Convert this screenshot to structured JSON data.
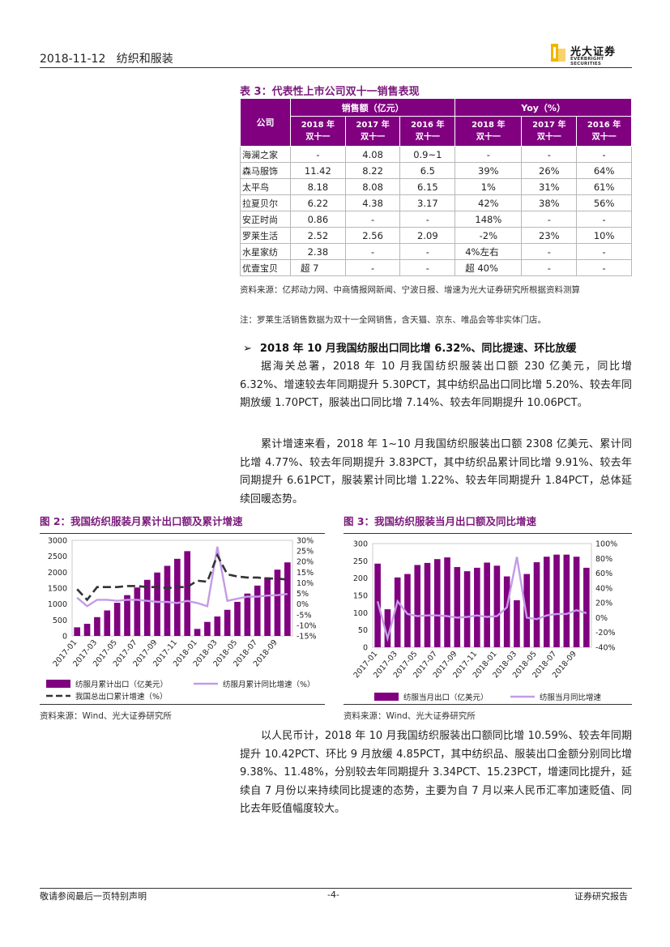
{
  "header": {
    "date": "2018-11-12",
    "section": "纺织和服装",
    "logo_cn": "光大证券",
    "logo_en": "EVERBRIGHT SECURITIES"
  },
  "table3": {
    "title": "表 3：代表性上市公司双十一销售表现",
    "col_company": "公司",
    "group_sales": "销售额（亿元）",
    "group_yoy": "Yoy（%）",
    "sub_headers": [
      [
        "2018 年",
        "双十一"
      ],
      [
        "2017 年",
        "双十一"
      ],
      [
        "2016 年",
        "双十一"
      ],
      [
        "2018 年",
        "双十一"
      ],
      [
        "2017 年",
        "双十一"
      ],
      [
        "2016 年",
        "双十一"
      ]
    ],
    "rows": [
      [
        "海澜之家",
        "-",
        "4.08",
        "0.9~1",
        "-",
        "-",
        "-"
      ],
      [
        "森马服饰",
        "11.42",
        "8.22",
        "6.5",
        "39%",
        "26%",
        "64%"
      ],
      [
        "太平鸟",
        "8.18",
        "8.08",
        "6.15",
        "1%",
        "31%",
        "61%"
      ],
      [
        "拉夏贝尔",
        "6.22",
        "4.38",
        "3.17",
        "42%",
        "38%",
        "56%"
      ],
      [
        "安正时尚",
        "0.86",
        "-",
        "-",
        "148%",
        "-",
        "-"
      ],
      [
        "罗莱生活",
        "2.52",
        "2.56",
        "2.09",
        "-2%",
        "23%",
        "10%"
      ],
      [
        "水星家纺",
        "2.38",
        "-",
        "-",
        "4%左右",
        "-",
        "-"
      ],
      [
        "优壹宝贝",
        "超 7",
        "-",
        "-",
        "超 40%",
        "-",
        "-"
      ]
    ],
    "source": "资料来源：亿邦动力网、中商情报网新闻、宁波日报、增速为光大证券研究所根据资料测算",
    "note": "注：罗莱生活销售数据为双十一全网销售，含天猫、京东、唯品会等非实体门店。"
  },
  "section_heading": "2018 年 10 月我国纺服出口同比增 6.32%、同比提速、环比放缓",
  "paragraphs": {
    "p1": "据海关总署，2018 年 10 月我国纺织服装出口额 230 亿美元，同比增 6.32%、增速较去年同期提升 5.30PCT，其中纺织品出口同比增 5.20%、较去年同期放缓 1.70PCT，服装出口同比增 7.14%、较去年同期提升 10.06PCT。",
    "p2": "累计增速来看，2018 年 1~10 月我国纺织服装出口额 2308 亿美元、累计同比增 4.77%、较去年同期提升 3.83PCT，其中纺织品累计同比增 9.91%、较去年同期提升 6.61PCT，服装累计同比增 1.22%、较去年同期提升 1.84PCT，总体延续回暖态势。",
    "p3": "以人民币计，2018 年 10 月我国纺织服装出口额同比增 10.59%、较去年同期提升 10.42PCT、环比 9 月放缓 4.85PCT，其中纺织品、服装出口金额分别同比增 9.38%、11.48%，分别较去年同期提升 3.34PCT、15.23PCT，增速同比提升，延续自 7 月份以来持续同比提速的态势，主要为自 7 月以来人民币汇率加速贬值、同比去年贬值幅度较大。"
  },
  "figures": {
    "fig2_title": "图 2：我国纺织服装月累计出口额及累计增速",
    "fig3_title": "图 3：我国纺织服装当月出口额及同比增速",
    "fig2_source": "资料来源：Wind、光大证券研究所",
    "fig3_source": "资料来源：Wind、光大证券研究所"
  },
  "chart_data": [
    {
      "type": "bar",
      "x_ticks": [
        "2017-01",
        "2017-03",
        "2017-05",
        "2017-07",
        "2017-09",
        "2017-11",
        "2018-01",
        "2018-03",
        "2018-05",
        "2018-07",
        "2018-09"
      ],
      "categories": [
        "2017-01",
        "2017-02",
        "2017-03",
        "2017-04",
        "2017-05",
        "2017-06",
        "2017-07",
        "2017-08",
        "2017-09",
        "2017-10",
        "2017-11",
        "2017-12",
        "2018-01",
        "2018-02",
        "2018-03",
        "2018-04",
        "2018-05",
        "2018-06",
        "2018-07",
        "2018-08",
        "2018-09",
        "2018-10"
      ],
      "left_ylim": [
        0,
        3000
      ],
      "left_yticks": [
        "3000",
        "2500",
        "2000",
        "1500",
        "1000",
        "500",
        "0"
      ],
      "right_ylim": [
        -15,
        30
      ],
      "right_yticks": [
        "30%",
        "25%",
        "20%",
        "15%",
        "10%",
        "5%",
        "0%",
        "-5%",
        "-10%",
        "-15%"
      ],
      "series": [
        {
          "name": "纺服月累计出口（亿美元）",
          "kind": "bar",
          "axis": "left",
          "color": "#800080",
          "values": [
            270,
            380,
            590,
            800,
            1040,
            1280,
            1520,
            1760,
            1990,
            2200,
            2420,
            2660,
            220,
            440,
            610,
            820,
            1070,
            1330,
            1580,
            1840,
            2080,
            2308
          ]
        },
        {
          "name": "纺服月累计同比增速（%）",
          "kind": "line",
          "axis": "right",
          "color": "#c39be6",
          "values": [
            3.0,
            -1.0,
            2.0,
            2.0,
            1.5,
            2.0,
            2.0,
            1.5,
            1.0,
            1.0,
            0.5,
            1.5,
            0.5,
            -1.0,
            27.0,
            1.5,
            2.5,
            3.5,
            3.5,
            4.0,
            4.2,
            4.77
          ]
        },
        {
          "name": "我国总出口累计增速（%）",
          "kind": "line",
          "axis": "right",
          "color": "#333333",
          "dashed": true,
          "values": [
            7.0,
            2.0,
            8.0,
            8.0,
            8.0,
            8.5,
            8.5,
            8.0,
            8.0,
            7.5,
            8.0,
            8.0,
            11.0,
            10.5,
            23.0,
            14.0,
            13.0,
            12.5,
            12.5,
            12.0,
            12.0,
            11.5
          ]
        }
      ]
    },
    {
      "type": "bar",
      "x_ticks": [
        "2017-01",
        "2017-03",
        "2017-05",
        "2017-07",
        "2017-09",
        "2017-11",
        "2018-01",
        "2018-03",
        "2018-05",
        "2018-07",
        "2018-09"
      ],
      "categories": [
        "2017-01",
        "2017-02",
        "2017-03",
        "2017-04",
        "2017-05",
        "2017-06",
        "2017-07",
        "2017-08",
        "2017-09",
        "2017-10",
        "2017-11",
        "2017-12",
        "2018-01",
        "2018-02",
        "2018-03",
        "2018-04",
        "2018-05",
        "2018-06",
        "2018-07",
        "2018-08",
        "2018-09",
        "2018-10"
      ],
      "left_ylim": [
        0,
        300
      ],
      "left_yticks": [
        "300",
        "250",
        "200",
        "150",
        "100",
        "50",
        "0"
      ],
      "right_ylim": [
        -40,
        100
      ],
      "right_yticks": [
        "100%",
        "80%",
        "60%",
        "40%",
        "20%",
        "0%",
        "-20%",
        "-40%"
      ],
      "series": [
        {
          "name": "纺服当月出口（亿美元）",
          "kind": "bar",
          "axis": "left",
          "color": "#800080",
          "values": [
            242,
            110,
            202,
            212,
            238,
            244,
            255,
            260,
            232,
            220,
            230,
            245,
            236,
            205,
            136,
            212,
            246,
            262,
            268,
            268,
            262,
            230
          ]
        },
        {
          "name": "纺服当月同比增速",
          "kind": "line",
          "axis": "right",
          "color": "#c39be6",
          "values": [
            22,
            -28,
            22,
            5,
            2,
            3,
            3,
            2,
            0,
            1,
            3,
            1,
            2,
            14,
            82,
            0,
            -2,
            3,
            5,
            5,
            10,
            6
          ]
        }
      ]
    }
  ],
  "footer": {
    "left": "敬请参阅最后一页特别声明",
    "center": "-4-",
    "right": "证券研究报告"
  }
}
